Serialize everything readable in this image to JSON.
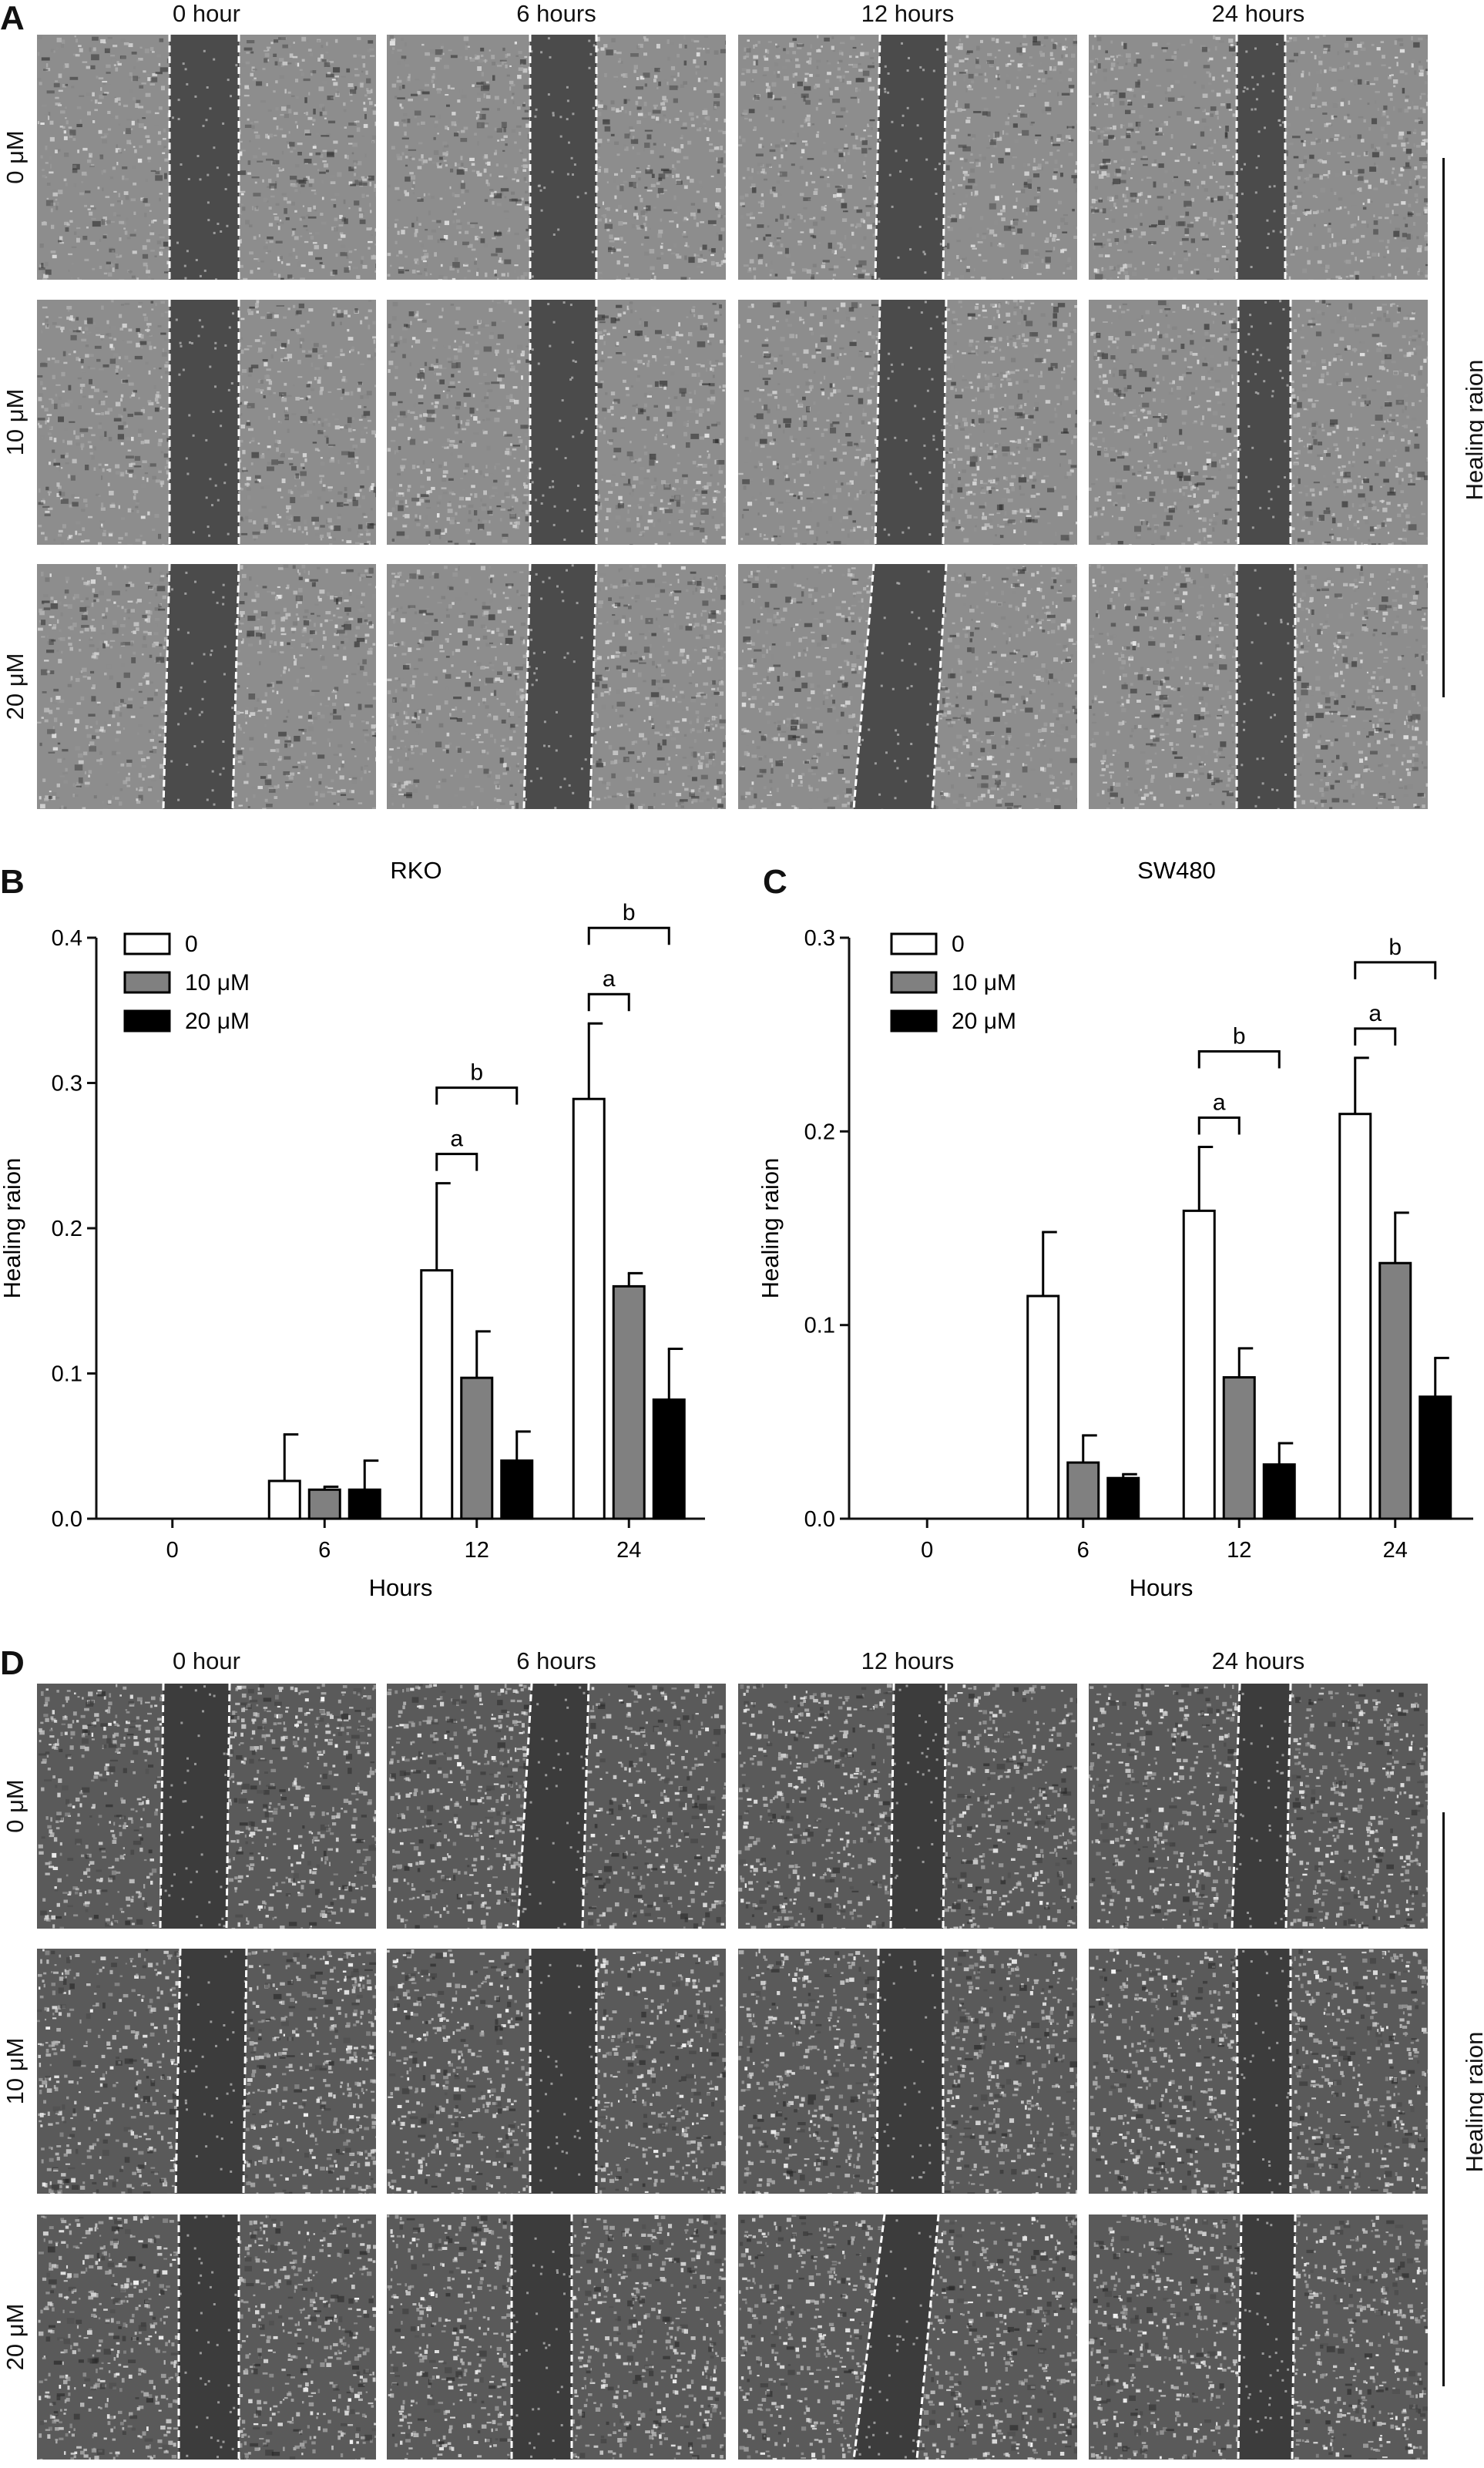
{
  "panels": {
    "A": {
      "letter": "A",
      "columns": [
        "0 hour",
        "6 hours",
        "12 hours",
        "24 hours"
      ],
      "rows": [
        "0 μM",
        "10 μM",
        "20 μM"
      ],
      "side_label": "Healing raion"
    },
    "D": {
      "letter": "D",
      "columns": [
        "0 hour",
        "6 hours",
        "12 hours",
        "24 hours"
      ],
      "rows": [
        "0 μM",
        "10 μM",
        "20 μM"
      ],
      "side_label": "Healing raion"
    },
    "B": {
      "letter": "B"
    },
    "C": {
      "letter": "C"
    }
  },
  "chart_data": [
    {
      "type": "bar",
      "title": "RKO",
      "xlabel": "Hours",
      "ylabel": "Healing raion",
      "categories": [
        "0",
        "6",
        "12",
        "24"
      ],
      "ylim": [
        0,
        0.4
      ],
      "yticks": [
        "0.0",
        "0.1",
        "0.2",
        "0.3",
        "0.4"
      ],
      "legend_position": "top-left",
      "series": [
        {
          "name": "0",
          "fill": "#ffffff",
          "values": [
            0,
            0.026,
            0.171,
            0.289
          ],
          "errors": [
            0,
            0.032,
            0.06,
            0.052
          ]
        },
        {
          "name": "10 μM",
          "fill": "#808080",
          "values": [
            0,
            0.02,
            0.097,
            0.16
          ],
          "errors": [
            0,
            0.002,
            0.032,
            0.009
          ]
        },
        {
          "name": "20 μM",
          "fill": "#000000",
          "values": [
            0,
            0.02,
            0.04,
            0.082
          ],
          "errors": [
            0,
            0.02,
            0.02,
            0.035
          ]
        }
      ],
      "annotations": [
        {
          "category": "12",
          "from": 0,
          "to": 1,
          "label": "a"
        },
        {
          "category": "12",
          "from": 0,
          "to": 2,
          "label": "b"
        },
        {
          "category": "24",
          "from": 0,
          "to": 1,
          "label": "a"
        },
        {
          "category": "24",
          "from": 0,
          "to": 2,
          "label": "b"
        }
      ]
    },
    {
      "type": "bar",
      "title": "SW480",
      "xlabel": "Hours",
      "ylabel": "Healing raion",
      "categories": [
        "0",
        "6",
        "12",
        "24"
      ],
      "ylim": [
        0,
        0.3
      ],
      "yticks": [
        "0.0",
        "0.1",
        "0.2",
        "0.3"
      ],
      "legend_position": "top-left",
      "series": [
        {
          "name": "0",
          "fill": "#ffffff",
          "values": [
            0,
            0.115,
            0.159,
            0.209
          ],
          "errors": [
            0,
            0.033,
            0.033,
            0.029
          ]
        },
        {
          "name": "10 μM",
          "fill": "#808080",
          "values": [
            0,
            0.029,
            0.073,
            0.132
          ],
          "errors": [
            0,
            0.014,
            0.015,
            0.026
          ]
        },
        {
          "name": "20 μM",
          "fill": "#000000",
          "values": [
            0,
            0.021,
            0.028,
            0.063
          ],
          "errors": [
            0,
            0.002,
            0.011,
            0.02
          ]
        }
      ],
      "annotations": [
        {
          "category": "12",
          "from": 0,
          "to": 1,
          "label": "a"
        },
        {
          "category": "12",
          "from": 0,
          "to": 2,
          "label": "b"
        },
        {
          "category": "24",
          "from": 0,
          "to": 1,
          "label": "a"
        },
        {
          "category": "24",
          "from": 0,
          "to": 2,
          "label": "b"
        }
      ]
    }
  ]
}
